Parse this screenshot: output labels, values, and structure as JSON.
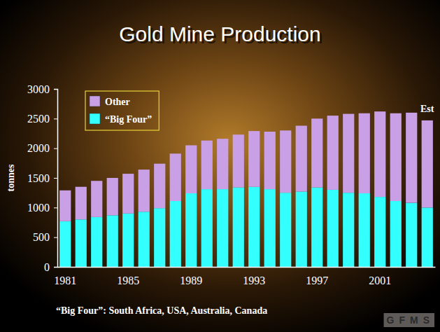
{
  "chart_data": {
    "type": "bar",
    "title": "Gold Mine Production",
    "y_label": "tonnes",
    "stacked": true,
    "grid": false,
    "legend": "upper left",
    "annotations": [
      "Est"
    ],
    "footnote": "“Big Four”: South Africa, USA, Australia, Canada",
    "source": "GFMS",
    "categories": [
      "1981",
      null,
      null,
      null,
      "1985",
      null,
      null,
      null,
      "1989",
      null,
      null,
      null,
      "1993",
      null,
      null,
      null,
      "1997",
      null,
      null,
      null,
      "2001",
      null,
      null,
      null
    ],
    "series": [
      {
        "name": "“Big Four”",
        "color": "#33ffff",
        "values": [
          770,
          800,
          840,
          870,
          900,
          930,
          990,
          1110,
          1240,
          1310,
          1310,
          1340,
          1350,
          1310,
          1250,
          1270,
          1340,
          1300,
          1250,
          1240,
          1180,
          1110,
          1080,
          1000
        ]
      },
      {
        "name": "Other",
        "color": "#c9a0e6",
        "values": [
          520,
          550,
          610,
          630,
          670,
          710,
          750,
          800,
          810,
          820,
          850,
          890,
          940,
          970,
          1050,
          1110,
          1160,
          1250,
          1330,
          1350,
          1440,
          1480,
          1520,
          1470
        ]
      }
    ],
    "ylim": [
      0,
      3000
    ],
    "yticks": [
      0,
      500,
      1000,
      1500,
      2000,
      2500,
      3000
    ]
  }
}
